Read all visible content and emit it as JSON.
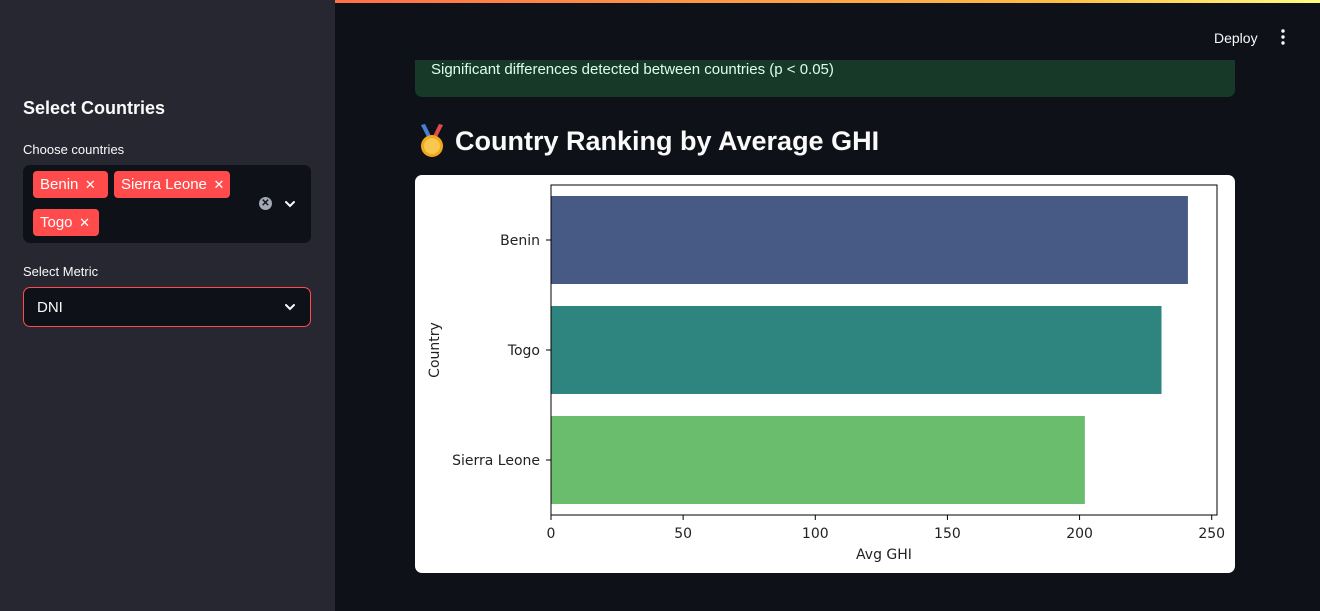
{
  "sidebar": {
    "title": "Select Countries",
    "countries_label": "Choose countries",
    "selected_countries": [
      "Benin",
      "Sierra Leone",
      "Togo"
    ],
    "metric_label": "Select Metric",
    "metric_value": "DNI"
  },
  "header": {
    "deploy_label": "Deploy"
  },
  "alert": {
    "text": "Significant differences detected between countries (p < 0.05)"
  },
  "section": {
    "title": "Country Ranking by Average GHI"
  },
  "colors": {
    "accent": "#ff4b4b",
    "sidebar_bg": "#262730",
    "app_bg": "#0e1117",
    "success_bg": "#173928"
  },
  "chart_data": {
    "type": "bar",
    "orientation": "horizontal",
    "categories": [
      "Benin",
      "Togo",
      "Sierra Leone"
    ],
    "values": [
      241,
      231,
      202
    ],
    "colors": [
      "#475a85",
      "#2e8580",
      "#6bbd6e"
    ],
    "xlabel": "Avg GHI",
    "ylabel": "Country",
    "xlim": [
      0,
      252
    ],
    "xticks": [
      0,
      50,
      100,
      150,
      200,
      250
    ]
  }
}
